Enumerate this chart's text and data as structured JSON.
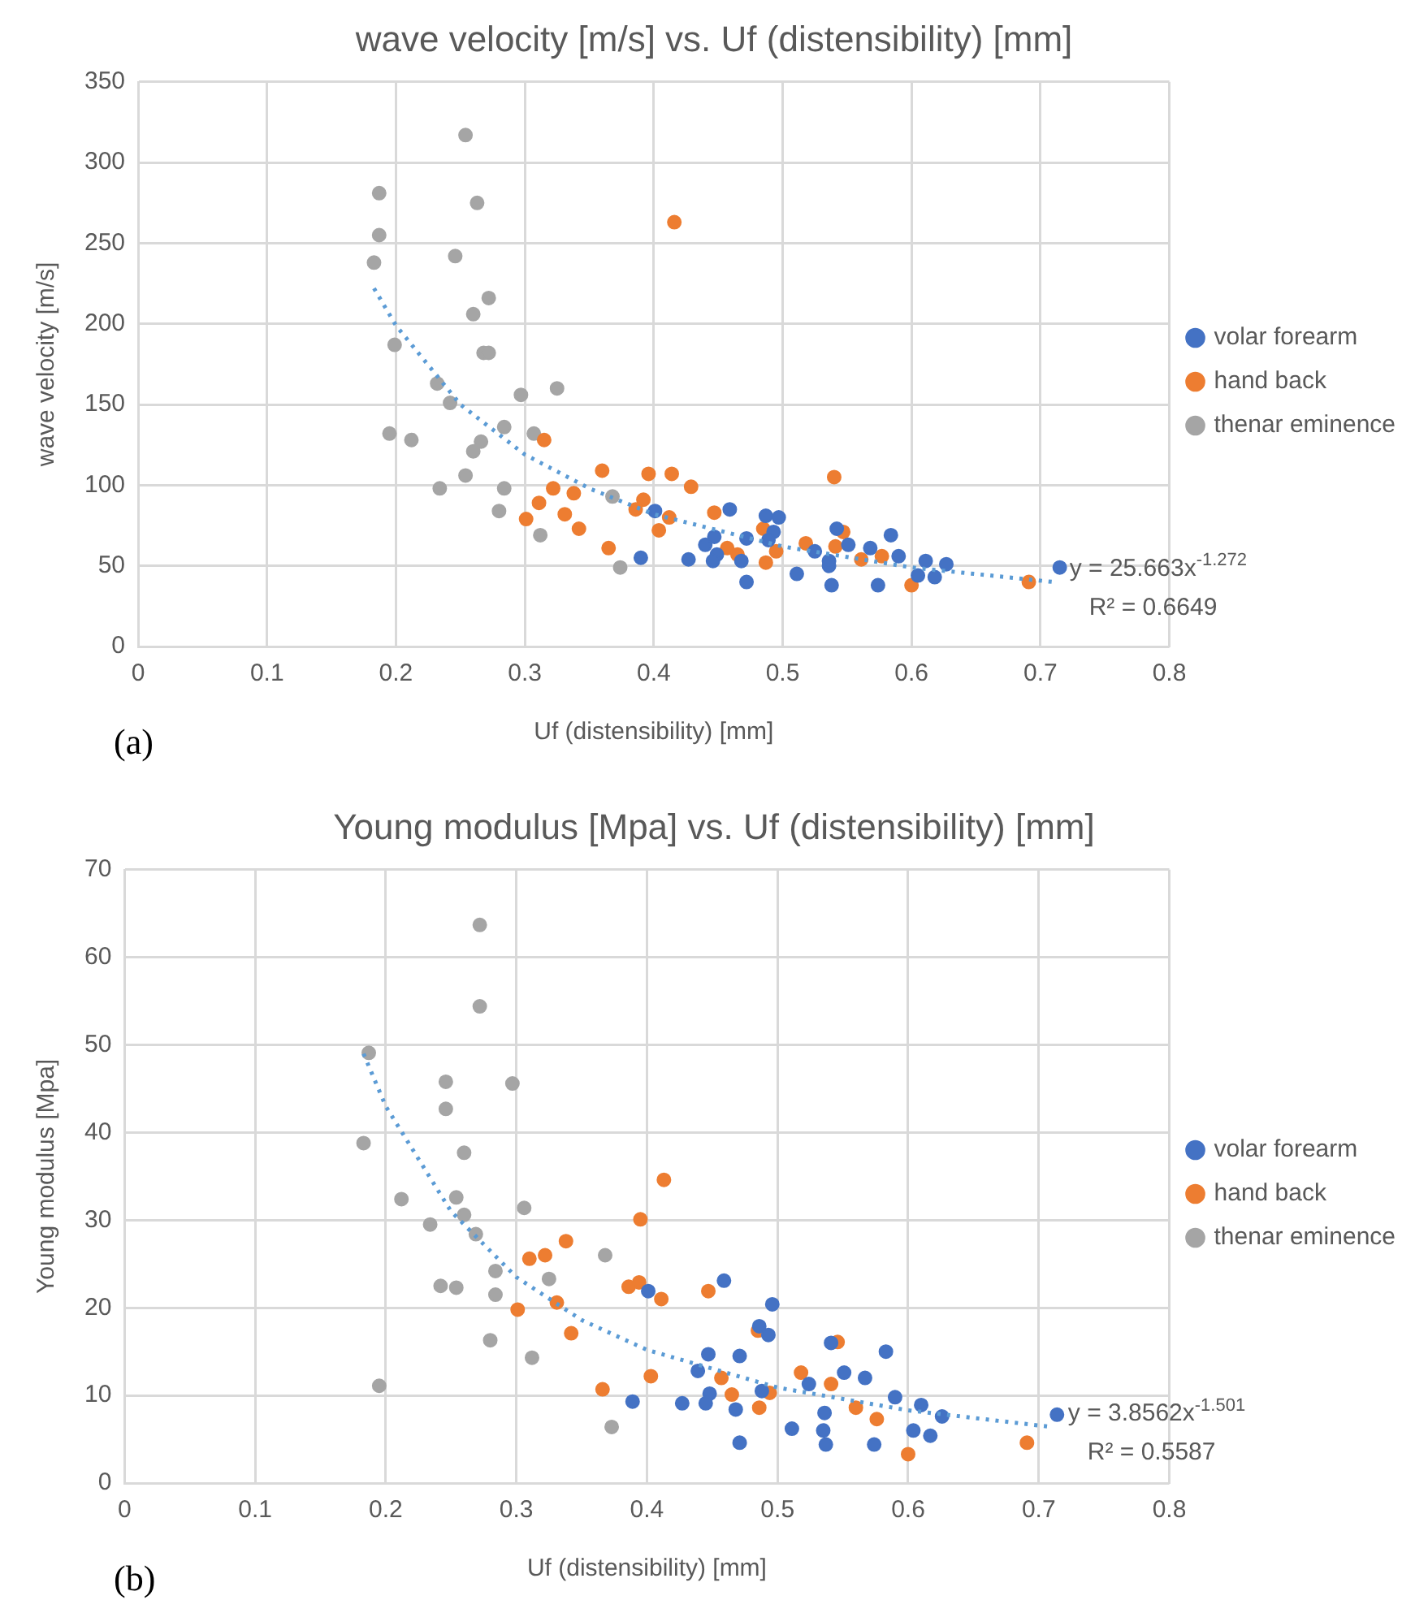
{
  "chart_data": [
    {
      "type": "scatter",
      "title": "wave velocity [m/s] vs. Uf (distensibility) [mm]",
      "xlabel": "Uf (distensibility) [mm]",
      "ylabel": "wave velocity [m/s]",
      "annotations": [
        "y = 25.663x$^{-1.272}$",
        "R² = 0.6649",
        "(a)"
      ],
      "xlim": [
        0,
        0.8
      ],
      "xticks": [
        0,
        0.1,
        0.2,
        0.3,
        0.4,
        0.5,
        0.6,
        0.7,
        0.8
      ],
      "ylim": [
        0,
        350
      ],
      "yticks": [
        0,
        50,
        100,
        150,
        200,
        250,
        300,
        350
      ],
      "grid": true,
      "legend": "right",
      "marker": "circle",
      "series": [
        {
          "name": "volar forearm",
          "color": "#4472c4",
          "x": [
            0.401,
            0.39,
            0.427,
            0.44,
            0.447,
            0.449,
            0.446,
            0.459,
            0.468,
            0.472,
            0.472,
            0.487,
            0.497,
            0.493,
            0.489,
            0.511,
            0.525,
            0.536,
            0.536,
            0.538,
            0.542,
            0.551,
            0.568,
            0.584,
            0.574,
            0.59,
            0.605,
            0.611,
            0.618,
            0.627,
            0.715
          ],
          "values": [
            84,
            55,
            54,
            63,
            68,
            57,
            53,
            85,
            53,
            67,
            40,
            81,
            80,
            71,
            66,
            45,
            59,
            50,
            53,
            38,
            73,
            63,
            61,
            69,
            38,
            56,
            44,
            53,
            43,
            51,
            49
          ]
        },
        {
          "name": "hand back",
          "color": "#ed7d31",
          "x": [
            0.315,
            0.36,
            0.322,
            0.338,
            0.311,
            0.301,
            0.331,
            0.342,
            0.365,
            0.416,
            0.396,
            0.414,
            0.429,
            0.392,
            0.386,
            0.412,
            0.404,
            0.447,
            0.485,
            0.457,
            0.465,
            0.495,
            0.487,
            0.54,
            0.547,
            0.541,
            0.518,
            0.561,
            0.577,
            0.6,
            0.691
          ],
          "values": [
            128,
            109,
            98,
            95,
            89,
            79,
            82,
            73,
            61,
            263,
            107,
            107,
            99,
            91,
            85,
            80,
            72,
            83,
            73,
            61,
            57,
            59,
            52,
            105,
            71,
            62,
            64,
            54,
            56,
            38,
            40
          ]
        },
        {
          "name": "thenar eminence",
          "color": "#a5a5a5",
          "x": [
            0.254,
            0.187,
            0.263,
            0.187,
            0.183,
            0.246,
            0.272,
            0.26,
            0.199,
            0.268,
            0.272,
            0.232,
            0.242,
            0.297,
            0.325,
            0.284,
            0.307,
            0.195,
            0.212,
            0.266,
            0.26,
            0.254,
            0.234,
            0.284,
            0.28,
            0.312,
            0.368,
            0.374
          ],
          "values": [
            317,
            281,
            275,
            255,
            238,
            242,
            216,
            206,
            187,
            182,
            182,
            163,
            151,
            156,
            160,
            136,
            132,
            132,
            128,
            127,
            121,
            106,
            98,
            98,
            84,
            69,
            93,
            49
          ]
        },
        {
          "type": "line",
          "color": "#5b9bd5",
          "line_style": "dotted",
          "marker": "none",
          "x": [
            0.183,
            0.2,
            0.25,
            0.3,
            0.35,
            0.4,
            0.5,
            0.6,
            0.71
          ],
          "values": [
            222,
            199,
            150,
            119,
            98,
            82,
            62,
            49,
            40
          ]
        }
      ]
    },
    {
      "type": "scatter",
      "title": "Young modulus [Mpa] vs. Uf (distensibility) [mm]",
      "xlabel": "Uf (distensibility) [mm]",
      "ylabel": "Young modulus [Mpa]",
      "annotations": [
        "y = 3.8562x$^{-1.501}$",
        "R² = 0.5587",
        "(b)"
      ],
      "xlim": [
        0,
        0.8
      ],
      "xticks": [
        0,
        0.1,
        0.2,
        0.3,
        0.4,
        0.5,
        0.6,
        0.7,
        0.8
      ],
      "ylim": [
        0,
        70
      ],
      "yticks": [
        0,
        10,
        20,
        30,
        40,
        50,
        60,
        70
      ],
      "grid": true,
      "legend": "right",
      "marker": "circle",
      "series": [
        {
          "name": "volar forearm",
          "color": "#4472c4",
          "x": [
            0.401,
            0.459,
            0.496,
            0.486,
            0.493,
            0.541,
            0.583,
            0.447,
            0.471,
            0.439,
            0.488,
            0.448,
            0.445,
            0.427,
            0.389,
            0.468,
            0.524,
            0.551,
            0.567,
            0.59,
            0.61,
            0.626,
            0.714,
            0.536,
            0.511,
            0.535,
            0.604,
            0.617,
            0.471,
            0.537,
            0.574
          ],
          "values": [
            21.9,
            23.1,
            20.4,
            17.9,
            16.9,
            16,
            15,
            14.7,
            14.5,
            12.8,
            10.5,
            10.2,
            9.1,
            9.1,
            9.3,
            8.4,
            11.3,
            12.6,
            12,
            9.8,
            8.9,
            7.6,
            7.8,
            8,
            6.2,
            6,
            6,
            5.4,
            4.6,
            4.4,
            4.4
          ]
        },
        {
          "name": "hand back",
          "color": "#ed7d31",
          "x": [
            0.338,
            0.322,
            0.31,
            0.331,
            0.301,
            0.342,
            0.366,
            0.413,
            0.395,
            0.386,
            0.394,
            0.411,
            0.447,
            0.485,
            0.546,
            0.403,
            0.457,
            0.465,
            0.494,
            0.486,
            0.518,
            0.541,
            0.56,
            0.576,
            0.691,
            0.6
          ],
          "values": [
            27.6,
            26,
            25.6,
            20.6,
            19.8,
            17.1,
            10.7,
            34.6,
            30.1,
            22.4,
            22.9,
            21,
            21.9,
            17.4,
            16.1,
            12.2,
            12,
            10.1,
            10.3,
            8.6,
            12.6,
            11.3,
            8.6,
            7.3,
            4.6,
            3.3
          ]
        },
        {
          "name": "thenar eminence",
          "color": "#a5a5a5",
          "x": [
            0.272,
            0.272,
            0.187,
            0.246,
            0.297,
            0.246,
            0.183,
            0.26,
            0.212,
            0.254,
            0.306,
            0.26,
            0.234,
            0.269,
            0.368,
            0.284,
            0.325,
            0.242,
            0.254,
            0.284,
            0.28,
            0.312,
            0.195,
            0.373
          ],
          "values": [
            63.7,
            54.4,
            49.1,
            45.8,
            45.6,
            42.7,
            38.8,
            37.7,
            32.4,
            32.6,
            31.4,
            30.6,
            29.5,
            28.4,
            26,
            24.2,
            23.3,
            22.5,
            22.3,
            21.5,
            16.3,
            14.3,
            11.1,
            6.4
          ]
        },
        {
          "type": "line",
          "color": "#5b9bd5",
          "line_style": "dotted",
          "marker": "none",
          "x": [
            0.183,
            0.2,
            0.25,
            0.3,
            0.35,
            0.4,
            0.5,
            0.6,
            0.71
          ],
          "values": [
            49,
            43,
            31,
            23.5,
            18.6,
            15.2,
            10.9,
            8.3,
            6.4
          ]
        }
      ]
    }
  ]
}
